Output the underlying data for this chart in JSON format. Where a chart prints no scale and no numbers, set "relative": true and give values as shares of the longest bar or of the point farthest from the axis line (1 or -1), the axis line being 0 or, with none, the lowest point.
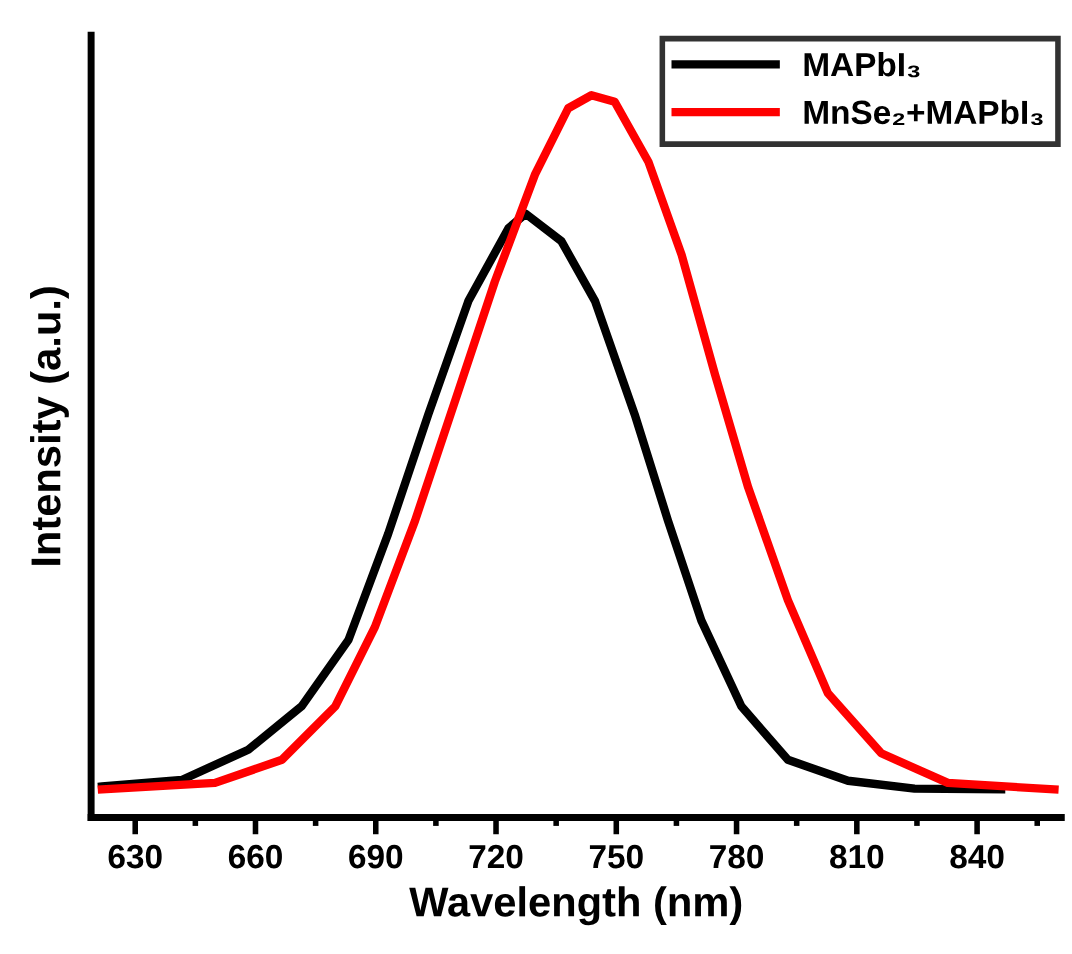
{
  "chart_data": {
    "type": "line",
    "relative": true,
    "xlabel": "Wavelength (nm)",
    "ylabel": "Intensity (a.u.)",
    "xlim": [
      619,
      861
    ],
    "xticks": [
      630,
      660,
      690,
      720,
      750,
      780,
      810,
      840
    ],
    "legend": "top right",
    "grid": false,
    "marker": "none",
    "line_style": "solid",
    "series": [
      {
        "name": "MAPbI₃",
        "color": "#000000",
        "x": [
          621.7,
          641.6,
          658.2,
          671.5,
          683.2,
          693.1,
          703.1,
          713.1,
          723.1,
          727.4,
          736.3,
          744.7,
          754.6,
          762.9,
          771.2,
          781.2,
          792.8,
          807.8,
          824.4,
          846.0
        ],
        "values": [
          0.043,
          0.052,
          0.094,
          0.154,
          0.246,
          0.393,
          0.558,
          0.715,
          0.816,
          0.836,
          0.798,
          0.715,
          0.558,
          0.411,
          0.273,
          0.154,
          0.08,
          0.051,
          0.04,
          0.039
        ]
      },
      {
        "name": "MnSe₂+MAPbI₃",
        "color": "#ff0000",
        "x": [
          621.7,
          649.9,
          666.6,
          679.9,
          689.8,
          699.8,
          709.8,
          719.7,
          729.7,
          738.0,
          743.8,
          749.6,
          758.0,
          766.3,
          774.6,
          782.9,
          792.8,
          802.8,
          816.1,
          832.7,
          859.3
        ],
        "values": [
          0.039,
          0.048,
          0.08,
          0.154,
          0.264,
          0.411,
          0.577,
          0.742,
          0.89,
          0.982,
          1.0,
          0.991,
          0.908,
          0.779,
          0.614,
          0.457,
          0.301,
          0.172,
          0.089,
          0.048,
          0.039
        ]
      }
    ]
  }
}
